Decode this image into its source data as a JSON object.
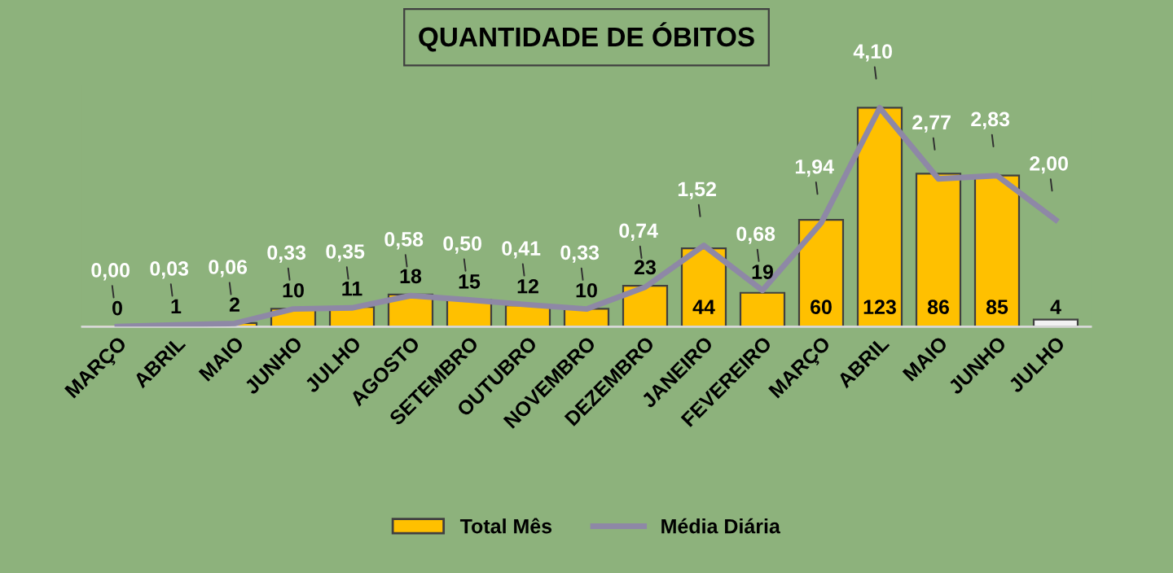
{
  "chart_data": {
    "type": "bar",
    "title": "QUANTIDADE DE ÓBITOS",
    "categories": [
      "MARÇO",
      "ABRIL",
      "MAIO",
      "JUNHO",
      "JULHO",
      "AGOSTO",
      "SETEMBRO",
      "OUTUBRO",
      "NOVEMBRO",
      "DEZEMBRO",
      "JANEIRO",
      "FEVEREIRO",
      "MARÇO",
      "ABRIL",
      "MAIO",
      "JUNHO",
      "JULHO"
    ],
    "series": [
      {
        "name": "Total Mês",
        "type": "bar",
        "color": "#ffc000",
        "colors": [
          "#ffc000",
          "#ffc000",
          "#ffc000",
          "#ffc000",
          "#ffc000",
          "#ffc000",
          "#ffc000",
          "#ffc000",
          "#ffc000",
          "#ffc000",
          "#ffc000",
          "#ffc000",
          "#ffc000",
          "#ffc000",
          "#ffc000",
          "#ffc000",
          "#f2f2f2"
        ],
        "values": [
          0,
          1,
          2,
          10,
          11,
          18,
          15,
          12,
          10,
          23,
          44,
          19,
          60,
          123,
          86,
          85,
          4
        ],
        "value_labels": [
          "0",
          "1",
          "2",
          "10",
          "11",
          "18",
          "15",
          "12",
          "10",
          "23",
          "44",
          "19",
          "60",
          "123",
          "86",
          "85",
          "4"
        ]
      },
      {
        "name": "Média Diária",
        "type": "line",
        "axis": "y2",
        "color": "#8e88a6",
        "values": [
          0.0,
          0.03,
          0.06,
          0.33,
          0.35,
          0.58,
          0.5,
          0.41,
          0.33,
          0.74,
          1.52,
          0.68,
          1.94,
          4.1,
          2.77,
          2.83,
          2.0
        ],
        "value_labels": [
          "0,00",
          "0,03",
          "0,06",
          "0,33",
          "0,35",
          "0,58",
          "0,50",
          "0,41",
          "0,33",
          "0,74",
          "1,52",
          "0,68",
          "1,94",
          "4,10",
          "2,77",
          "2,83",
          "2,00"
        ]
      }
    ],
    "legend": "bottom",
    "grid": false
  }
}
